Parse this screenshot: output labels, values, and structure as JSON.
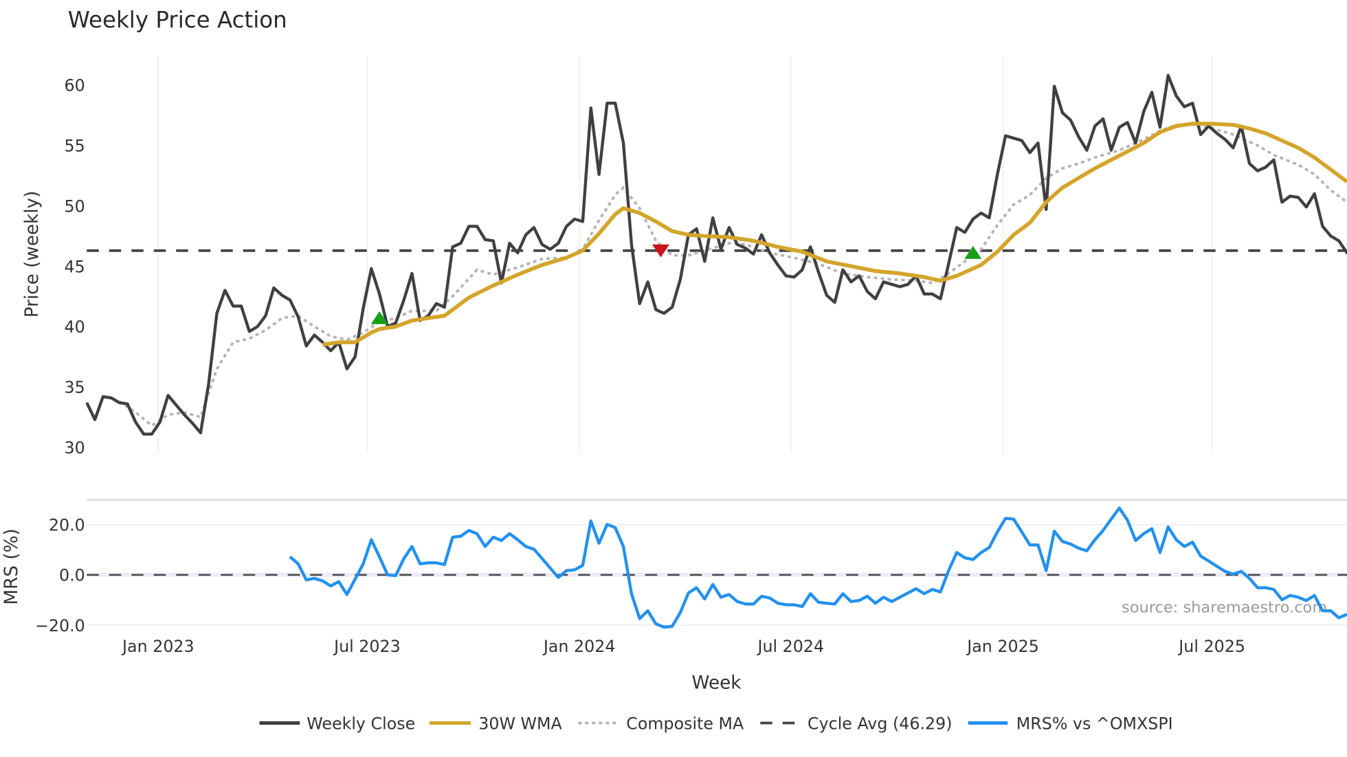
{
  "chart_data": [
    {
      "type": "line",
      "title": "Weekly Price Action",
      "ylabel": "Price (weekly)",
      "xlabel": "Week",
      "ylim": [
        29.5,
        62.4
      ],
      "yticks": [
        "30",
        "35",
        "40",
        "45",
        "50",
        "55",
        "60"
      ],
      "ytick_values": [
        30,
        35,
        40,
        45,
        50,
        55,
        60
      ],
      "xticks": [
        {
          "label": "Jan 2023",
          "week": 8.8
        },
        {
          "label": "Jul 2023",
          "week": 34.5
        },
        {
          "label": "Jan 2024",
          "week": 60.6
        },
        {
          "label": "Jul 2024",
          "week": 86.6
        },
        {
          "label": "Jan 2025",
          "week": 112.7
        },
        {
          "label": "Jul 2025",
          "week": 138.4
        }
      ],
      "x_weeks": 156,
      "grid": "vertical",
      "legend_position": "bottom",
      "series": [
        {
          "name": "Weekly Close",
          "color": "#404040",
          "style": "solid",
          "start_week": 0,
          "values": [
            33.7,
            32.3,
            34.2,
            34.1,
            33.7,
            33.6,
            32.1,
            31.1,
            31.1,
            32.1,
            34.3,
            33.5,
            32.7,
            32.0,
            31.2,
            35.3,
            41.1,
            43.0,
            41.7,
            41.7,
            39.6,
            40.0,
            40.9,
            43.2,
            42.6,
            42.2,
            40.8,
            38.4,
            39.3,
            38.7,
            38.0,
            38.7,
            36.5,
            37.5,
            41.5,
            44.8,
            42.7,
            40.0,
            40.3,
            42.2,
            44.4,
            40.5,
            40.9,
            41.9,
            41.6,
            46.6,
            46.9,
            48.3,
            48.3,
            47.2,
            47.1,
            43.6,
            46.9,
            46.1,
            47.6,
            48.2,
            46.8,
            46.4,
            46.9,
            48.3,
            48.9,
            48.7,
            58.1,
            52.6,
            58.5,
            58.5,
            55.2,
            46.8,
            41.9,
            43.7,
            41.4,
            41.1,
            41.6,
            43.9,
            47.6,
            48.1,
            45.4,
            49.0,
            46.4,
            48.2,
            46.8,
            46.5,
            46.0,
            47.6,
            46.1,
            45.1,
            44.2,
            44.1,
            44.7,
            46.6,
            44.5,
            42.6,
            42.0,
            44.7,
            43.7,
            44.2,
            42.9,
            42.3,
            43.7,
            43.5,
            43.3,
            43.5,
            44.2,
            42.7,
            42.7,
            42.3,
            45.2,
            48.2,
            47.8,
            48.9,
            49.4,
            49.0,
            52.6,
            55.8,
            55.6,
            55.4,
            54.4,
            55.2,
            49.7,
            59.9,
            57.7,
            57.1,
            55.7,
            54.6,
            56.6,
            57.2,
            54.6,
            56.5,
            56.9,
            55.2,
            57.8,
            59.4,
            56.5,
            60.8,
            59.1,
            58.2,
            58.5,
            55.9,
            56.6,
            56.0,
            55.5,
            54.8,
            56.6,
            53.5,
            52.9,
            53.2,
            53.8,
            50.3,
            50.8,
            50.7,
            49.9,
            51.0,
            48.3,
            47.5,
            47.1,
            46.1,
            47.6
          ]
        },
        {
          "name": "30W WMA",
          "color": "#d4a52a",
          "style": "solid",
          "points": [
            [
              29,
              38.5
            ],
            [
              31,
              38.7
            ],
            [
              33,
              38.7
            ],
            [
              35,
              39.5
            ],
            [
              36,
              39.8
            ],
            [
              38,
              40.0
            ],
            [
              40,
              40.5
            ],
            [
              44,
              40.9
            ],
            [
              47,
              42.4
            ],
            [
              50,
              43.4
            ],
            [
              53,
              44.3
            ],
            [
              56,
              45.1
            ],
            [
              59,
              45.7
            ],
            [
              61,
              46.3
            ],
            [
              63,
              47.7
            ],
            [
              65,
              49.3
            ],
            [
              66,
              49.8
            ],
            [
              68,
              49.4
            ],
            [
              70,
              48.7
            ],
            [
              72,
              47.9
            ],
            [
              74,
              47.6
            ],
            [
              76,
              47.5
            ],
            [
              79,
              47.4
            ],
            [
              82,
              47.1
            ],
            [
              85,
              46.6
            ],
            [
              88,
              46.2
            ],
            [
              91,
              45.4
            ],
            [
              94,
              45.0
            ],
            [
              97,
              44.6
            ],
            [
              100,
              44.4
            ],
            [
              103,
              44.1
            ],
            [
              105,
              43.8
            ],
            [
              107,
              44.2
            ],
            [
              110,
              45.1
            ],
            [
              112,
              46.2
            ],
            [
              114,
              47.6
            ],
            [
              116,
              48.6
            ],
            [
              118,
              50.3
            ],
            [
              120,
              51.5
            ],
            [
              122,
              52.3
            ],
            [
              124,
              53.1
            ],
            [
              126,
              53.8
            ],
            [
              128,
              54.5
            ],
            [
              130,
              55.2
            ],
            [
              132,
              56.1
            ],
            [
              134,
              56.6
            ],
            [
              136,
              56.8
            ],
            [
              138,
              56.8
            ],
            [
              141,
              56.7
            ],
            [
              143,
              56.4
            ],
            [
              145,
              56.0
            ],
            [
              147,
              55.4
            ],
            [
              149,
              54.8
            ],
            [
              151,
              54.0
            ],
            [
              153,
              53.0
            ],
            [
              155,
              52.0
            ]
          ]
        },
        {
          "name": "Composite MA",
          "color": "#b4b4b4",
          "style": "dotted",
          "points": [
            [
              4,
              33.8
            ],
            [
              6,
              32.9
            ],
            [
              8,
              31.8
            ],
            [
              10,
              32.7
            ],
            [
              12,
              32.9
            ],
            [
              14,
              32.5
            ],
            [
              16,
              36.5
            ],
            [
              18,
              38.7
            ],
            [
              20,
              39.0
            ],
            [
              22,
              39.7
            ],
            [
              24,
              40.7
            ],
            [
              26,
              40.9
            ],
            [
              28,
              40.0
            ],
            [
              30,
              39.2
            ],
            [
              32,
              38.9
            ],
            [
              34,
              39.5
            ],
            [
              36,
              40.4
            ],
            [
              38,
              40.7
            ],
            [
              40,
              41.3
            ],
            [
              43,
              41.3
            ],
            [
              45,
              42.5
            ],
            [
              48,
              44.7
            ],
            [
              50,
              44.3
            ],
            [
              53,
              44.9
            ],
            [
              56,
              45.6
            ],
            [
              59,
              45.7
            ],
            [
              61,
              46.4
            ],
            [
              63,
              48.8
            ],
            [
              65,
              50.9
            ],
            [
              66,
              51.5
            ],
            [
              68,
              49.8
            ],
            [
              70,
              47.1
            ],
            [
              72,
              45.9
            ],
            [
              74,
              45.9
            ],
            [
              76,
              46.3
            ],
            [
              79,
              46.9
            ],
            [
              81,
              46.8
            ],
            [
              84,
              46.1
            ],
            [
              87,
              45.7
            ],
            [
              90,
              45.2
            ],
            [
              93,
              44.4
            ],
            [
              96,
              44.1
            ],
            [
              99,
              43.9
            ],
            [
              102,
              43.8
            ],
            [
              104,
              43.6
            ],
            [
              106,
              44.4
            ],
            [
              108,
              45.4
            ],
            [
              110,
              46.4
            ],
            [
              112,
              48.4
            ],
            [
              114,
              50.1
            ],
            [
              116,
              50.9
            ],
            [
              118,
              52.3
            ],
            [
              120,
              53.1
            ],
            [
              122,
              53.5
            ],
            [
              124,
              54.0
            ],
            [
              127,
              54.6
            ],
            [
              130,
              55.5
            ],
            [
              132,
              56.2
            ],
            [
              134,
              56.7
            ],
            [
              136,
              56.7
            ],
            [
              138,
              56.5
            ],
            [
              141,
              55.9
            ],
            [
              144,
              55.0
            ],
            [
              146,
              54.2
            ],
            [
              149,
              53.4
            ],
            [
              151,
              52.6
            ],
            [
              153,
              51.3
            ],
            [
              155,
              50.3
            ]
          ]
        },
        {
          "name": "Cycle Avg (46.29)",
          "color": "#444444",
          "style": "dashed",
          "value": 46.29
        }
      ],
      "markers": [
        {
          "type": "buy",
          "week": 36,
          "value": 40.7,
          "color": "#17a017"
        },
        {
          "type": "sell",
          "week": 70.6,
          "value": 46.3,
          "color": "#c8141c"
        },
        {
          "type": "buy",
          "week": 109,
          "value": 46.1,
          "color": "#17a017"
        }
      ]
    },
    {
      "type": "line",
      "ylabel": "MRS (%)",
      "ylim": [
        -22,
        30
      ],
      "yticks": [
        "20.0",
        "0.0",
        "−20.0"
      ],
      "ytick_values": [
        20,
        0,
        -20
      ],
      "zero_line": 0,
      "series": [
        {
          "name": "MRS% vs ^OMXSPI",
          "color": "#2291ee",
          "style": "solid",
          "start_week": 25,
          "values": [
            7.2,
            4.4,
            -2,
            -1.4,
            -2.4,
            -4.4,
            -2.7,
            -7.8,
            -1.7,
            4.4,
            14,
            7.2,
            0,
            -0.3,
            6.5,
            11.3,
            4.4,
            4.8,
            4.8,
            4.1,
            15,
            15.4,
            17.7,
            16.4,
            11.3,
            15,
            13.7,
            16.4,
            14,
            11.3,
            10.2,
            6.5,
            2.7,
            -1,
            1.7,
            2,
            3.8,
            21.5,
            12.6,
            20.1,
            18.8,
            11.3,
            -7.5,
            -17.4,
            -14.3,
            -19.5,
            -20.8,
            -20.5,
            -15,
            -7.2,
            -5.1,
            -9.6,
            -3.8,
            -8.9,
            -7.8,
            -10.6,
            -11.6,
            -11.6,
            -8.5,
            -9.2,
            -11.3,
            -11.9,
            -11.9,
            -12.6,
            -7.5,
            -10.9,
            -11.3,
            -11.6,
            -7.5,
            -10.6,
            -10.2,
            -8.5,
            -11.3,
            -8.9,
            -10.6,
            -8.9,
            -7.2,
            -5.5,
            -7.5,
            -5.8,
            -6.8,
            1.7,
            8.9,
            6.8,
            6.1,
            8.9,
            10.9,
            17.1,
            22.5,
            22.2,
            17.1,
            11.9,
            11.9,
            1.7,
            17.4,
            13.3,
            12.3,
            10.6,
            9.6,
            14,
            17.7,
            22.2,
            26.6,
            21.8,
            13.7,
            16.4,
            18.4,
            8.9,
            19.1,
            14,
            11.3,
            13,
            7.5,
            5.5,
            3.4,
            1.4,
            0.3,
            1.4,
            -1.4,
            -5.1,
            -5.1,
            -5.8,
            -9.9,
            -8.2,
            -8.9,
            -10.2,
            -8.2,
            -14.3,
            -14.3,
            -17.1,
            -15.7
          ]
        }
      ]
    }
  ],
  "watermark": "source: sharemaestro.com",
  "legend": [
    "Weekly Close",
    "30W WMA",
    "Composite MA",
    "Cycle Avg (46.29)",
    "MRS% vs ^OMXSPI"
  ]
}
